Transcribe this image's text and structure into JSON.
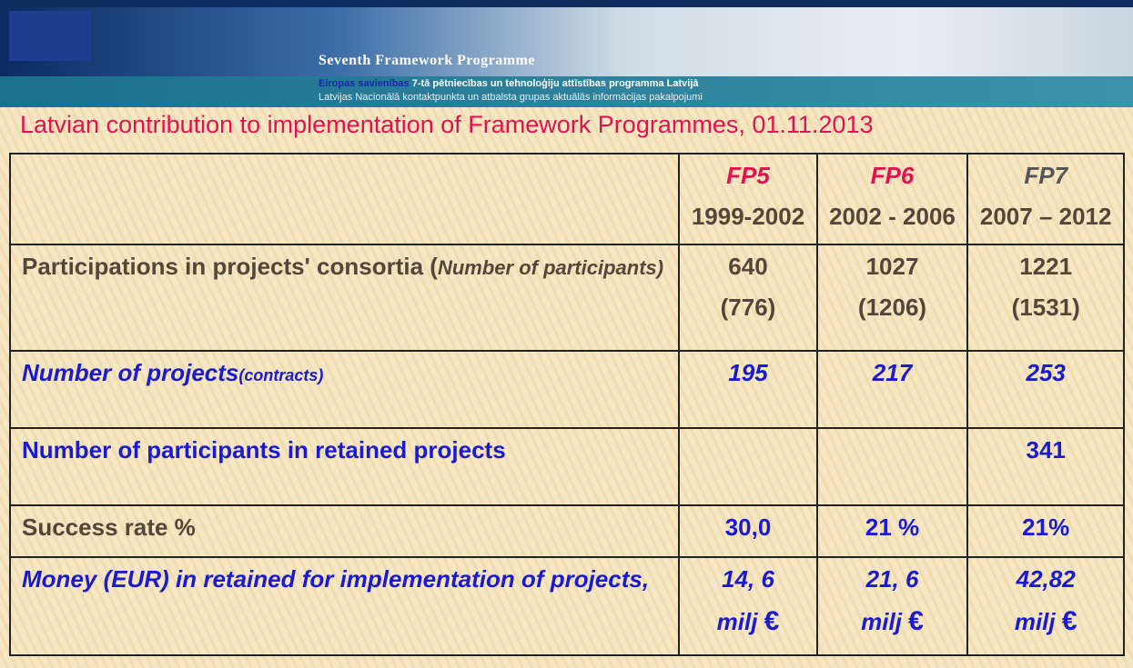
{
  "header": {
    "programme": "Seventh Framework Programme",
    "line1_lead": "Eiropas savienības",
    "line1_rest": "7-tā pētniecības un tehnoloģiju attīstības programma Latvijā",
    "line2": "Latvijas Nacionālā kontaktpunkta un atbalsta grupas aktuālās informācijas pakalpojumi"
  },
  "title": "Latvian contribution to implementation of Framework Programmes, 01.11.2013",
  "table": {
    "columns": [
      {
        "name": "FP5",
        "years": "1999-2002"
      },
      {
        "name": "FP6",
        "years": "2002 - 2006"
      },
      {
        "name": "FP7",
        "years": "2007 – 2012"
      }
    ],
    "rows": [
      {
        "label": "Participations in projects' consortia (",
        "label_italic": "Number of participants)",
        "cells": [
          {
            "value": "640",
            "sub": "(776)"
          },
          {
            "value": "1027",
            "sub": "(1206)"
          },
          {
            "value": "1221",
            "sub": "(1531)"
          }
        ]
      },
      {
        "label": "Number of  projects",
        "label_small": "(contracts)",
        "cells": [
          {
            "value": "195"
          },
          {
            "value": "217"
          },
          {
            "value": "253"
          }
        ]
      },
      {
        "label": "Number of participants in retained projects",
        "cells": [
          null,
          null,
          {
            "value": "341"
          }
        ]
      },
      {
        "label": "Success rate %",
        "cells": [
          {
            "value": "30,0"
          },
          {
            "value": "21 %"
          },
          {
            "value": "21%"
          }
        ]
      },
      {
        "label": "Money  (EUR) in retained  for implementation of projects,",
        "cells": [
          {
            "value": "14, 6",
            "unit": "milj",
            "currency": "€"
          },
          {
            "value": "21, 6",
            "unit": "milj",
            "currency": "€"
          },
          {
            "value": "42,82",
            "unit": "milj",
            "currency": "€"
          }
        ]
      }
    ]
  }
}
